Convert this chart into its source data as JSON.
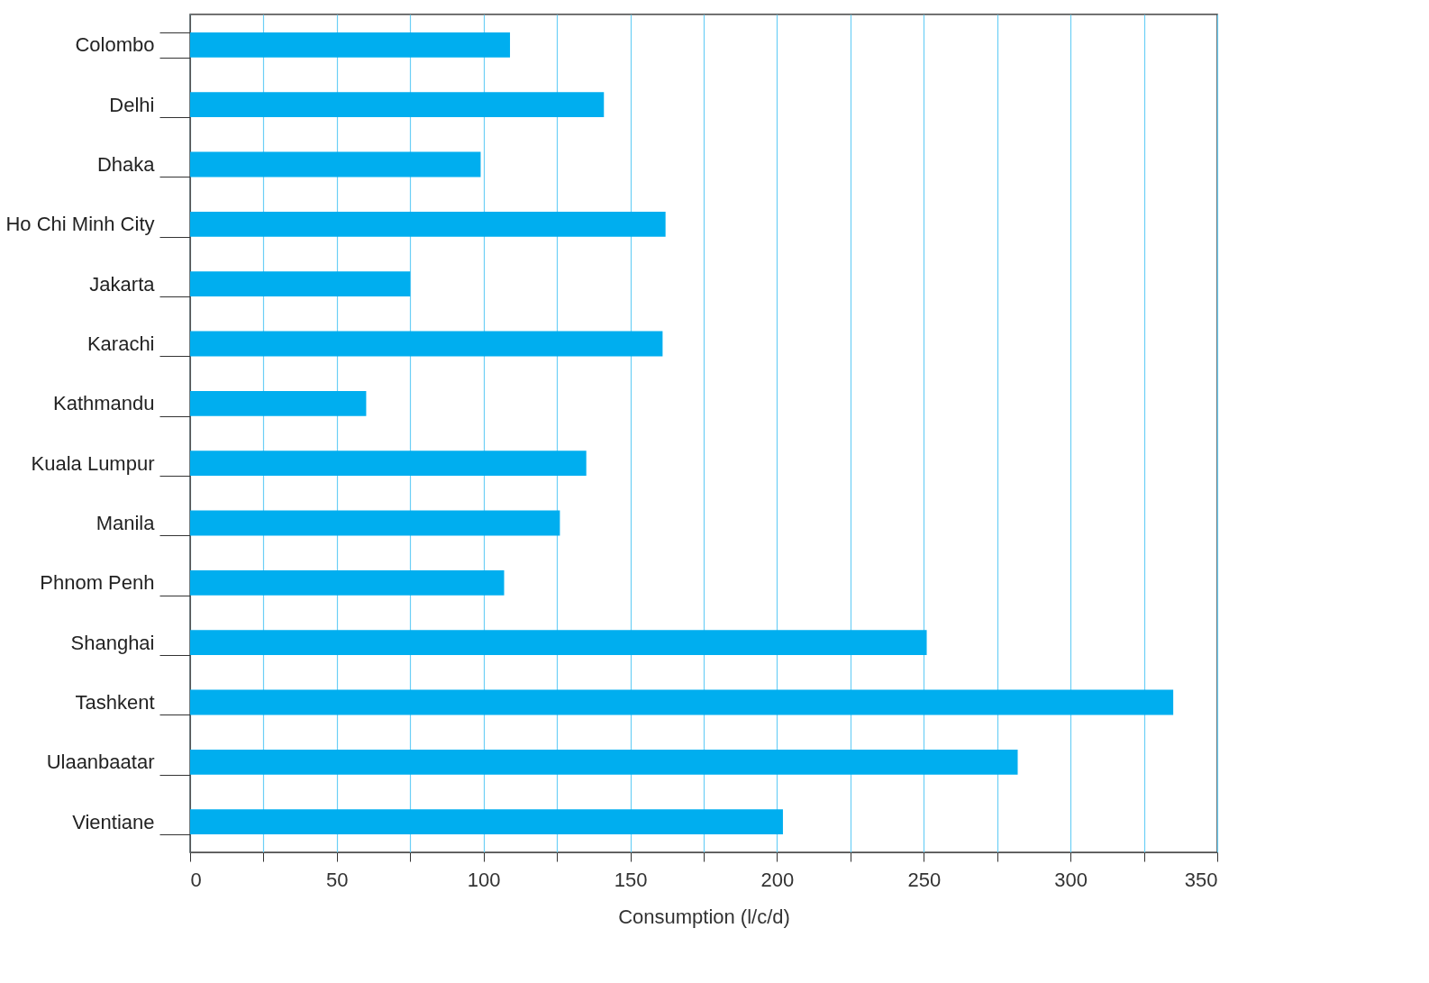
{
  "chart_data": {
    "type": "bar",
    "orientation": "horizontal",
    "xlabel": "Consumption (l/c/d)",
    "categories": [
      "Colombo",
      "Delhi",
      "Dhaka",
      "Ho Chi Minh City",
      "Jakarta",
      "Karachi",
      "Kathmandu",
      "Kuala Lumpur",
      "Manila",
      "Phnom Penh",
      "Shanghai",
      "Tashkent",
      "Ulaanbaatar",
      "Vientiane"
    ],
    "values": [
      109,
      141,
      99,
      162,
      75,
      161,
      60,
      135,
      126,
      107,
      251,
      335,
      282,
      202
    ],
    "color": "#00aeef",
    "xlim": [
      0,
      350
    ],
    "xticks": [
      0,
      {
        "value": 25,
        "label": null
      },
      50,
      {
        "value": 75,
        "label": null
      },
      100,
      {
        "value": 125,
        "label": null
      },
      150,
      {
        "value": 175,
        "label": null
      },
      200,
      {
        "value": 225,
        "label": null
      },
      250,
      {
        "value": 275,
        "label": null
      },
      300,
      {
        "value": 325,
        "label": null
      },
      350
    ],
    "grid": "x"
  }
}
